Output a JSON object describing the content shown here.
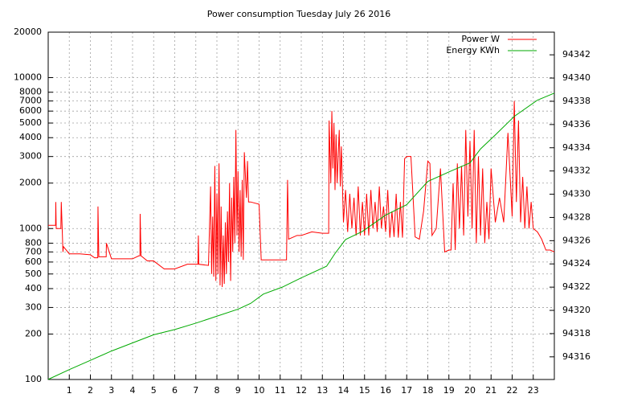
{
  "chart_data": {
    "type": "line",
    "title": "Power consumption Tuesday July 26 2016",
    "ylog": true,
    "grid": true,
    "legend": "top-right",
    "xlim": [
      0,
      24
    ],
    "xticks": [
      1,
      2,
      3,
      4,
      5,
      6,
      7,
      8,
      9,
      10,
      11,
      12,
      13,
      14,
      15,
      16,
      17,
      18,
      19,
      20,
      21,
      22,
      23
    ],
    "ylim": [
      100,
      20000
    ],
    "yticks": [
      100,
      200,
      300,
      400,
      500,
      600,
      700,
      800,
      1000,
      2000,
      3000,
      4000,
      5000,
      6000,
      7000,
      8000,
      10000,
      20000
    ],
    "y2lim": [
      94314.05,
      94343.95
    ],
    "y2ticks": [
      94316,
      94318,
      94320,
      94322,
      94324,
      94326,
      94328,
      94330,
      94332,
      94334,
      94336,
      94338,
      94340,
      94342
    ],
    "series": [
      {
        "name": "Power W",
        "color": "#ff0000",
        "x": [
          0,
          0.35,
          0.36,
          0.38,
          0.6,
          0.62,
          0.7,
          0.72,
          1,
          1.5,
          2,
          2.2,
          2.35,
          2.36,
          2.4,
          2.5,
          2.75,
          2.76,
          3,
          3.5,
          3.6,
          4,
          4.3,
          4.35,
          4.36,
          4.4,
          4.7,
          5,
          5.5,
          6,
          6.6,
          7.1,
          7.12,
          7.14,
          7.6,
          7.7,
          7.75,
          7.8,
          7.85,
          7.9,
          7.95,
          8.0,
          8.05,
          8.1,
          8.15,
          8.2,
          8.25,
          8.3,
          8.35,
          8.4,
          8.45,
          8.5,
          8.55,
          8.6,
          8.65,
          8.7,
          8.75,
          8.8,
          8.85,
          8.9,
          8.95,
          9.0,
          9.05,
          9.1,
          9.15,
          9.2,
          9.25,
          9.3,
          9.4,
          9.45,
          9.5,
          9.55,
          9.6,
          10.0,
          10.1,
          10.2,
          11.0,
          11.3,
          11.35,
          11.4,
          11.8,
          12.0,
          12.5,
          13.0,
          13.3,
          13.32,
          13.4,
          13.45,
          13.5,
          13.55,
          13.6,
          13.65,
          13.7,
          13.8,
          13.85,
          13.9,
          14.0,
          14.1,
          14.2,
          14.3,
          14.4,
          14.5,
          14.6,
          14.7,
          14.8,
          14.9,
          15.0,
          15.1,
          15.2,
          15.3,
          15.4,
          15.5,
          15.6,
          15.7,
          15.8,
          15.9,
          16.0,
          16.1,
          16.2,
          16.3,
          16.4,
          16.5,
          16.6,
          16.7,
          16.8,
          16.9,
          17.0,
          17.2,
          17.4,
          17.6,
          17.8,
          18.0,
          18.1,
          18.2,
          18.4,
          18.6,
          18.8,
          19.0,
          19.1,
          19.2,
          19.3,
          19.4,
          19.5,
          19.6,
          19.7,
          19.8,
          19.9,
          20.0,
          20.1,
          20.2,
          20.3,
          20.4,
          20.5,
          20.6,
          20.7,
          20.8,
          20.9,
          21.0,
          21.2,
          21.4,
          21.6,
          21.8,
          22.0,
          22.1,
          22.2,
          22.3,
          22.4,
          22.5,
          22.6,
          22.7,
          22.8,
          22.9,
          23.0,
          23.2,
          23.4,
          23.6,
          23.8,
          24.0
        ],
        "values": [
          1050,
          1050,
          1500,
          1000,
          1000,
          1500,
          700,
          760,
          680,
          680,
          670,
          640,
          640,
          1400,
          650,
          650,
          650,
          800,
          630,
          630,
          630,
          630,
          660,
          660,
          1250,
          660,
          610,
          610,
          540,
          540,
          580,
          580,
          900,
          580,
          570,
          1900,
          500,
          1200,
          480,
          2600,
          450,
          1700,
          500,
          2700,
          420,
          1400,
          410,
          900,
          430,
          1100,
          500,
          1300,
          600,
          2000,
          450,
          1600,
          700,
          2200,
          800,
          4500,
          900,
          2400,
          700,
          1800,
          650,
          2100,
          620,
          3200,
          1600,
          2800,
          1500,
          1500,
          1500,
          1450,
          620,
          620,
          620,
          620,
          2100,
          850,
          900,
          900,
          950,
          930,
          930,
          5200,
          2000,
          6000,
          2500,
          5000,
          1800,
          4200,
          2000,
          4500,
          1900,
          3500,
          1100,
          1800,
          950,
          1700,
          1000,
          1600,
          900,
          1900,
          900,
          1500,
          900,
          1700,
          900,
          1800,
          1000,
          1500,
          950,
          1900,
          1000,
          1400,
          950,
          1800,
          870,
          1300,
          880,
          1700,
          870,
          1500,
          870,
          2900,
          3000,
          3000,
          880,
          850,
          1300,
          2800,
          2700,
          900,
          1000,
          2500,
          700,
          720,
          720,
          2000,
          720,
          2700,
          1000,
          2600,
          900,
          4500,
          1200,
          3800,
          1000,
          4500,
          800,
          3000,
          900,
          2500,
          800,
          1500,
          850,
          2500,
          1100,
          1600,
          1100,
          4300,
          1200,
          7000,
          1500,
          5200,
          1100,
          2200,
          1000,
          1900,
          1000,
          1500,
          1000,
          950,
          850,
          720,
          720,
          700
        ]
      },
      {
        "name": "Energy KWh",
        "color": "#00aa00",
        "axis": "y2",
        "x": [
          0,
          1,
          2,
          3,
          4,
          5,
          6,
          7,
          8,
          9,
          9.6,
          10.2,
          11.1,
          12,
          13.2,
          13.6,
          14.1,
          14.9,
          16,
          17,
          18,
          19.1,
          20,
          20.5,
          21.2,
          22.1,
          23.2,
          24
        ],
        "values": [
          94314.06,
          94314.9,
          94315.7,
          94316.5,
          94317.2,
          94317.9,
          94318.35,
          94318.9,
          94319.5,
          94320.1,
          94320.6,
          94321.4,
          94322.0,
          94322.8,
          94323.8,
          94324.9,
          94326.1,
          94326.8,
          94328.2,
          94329.1,
          94331.1,
          94332.0,
          94332.7,
          94333.9,
          94335.1,
          94336.7,
          94338.1,
          94338.7
        ]
      }
    ]
  }
}
